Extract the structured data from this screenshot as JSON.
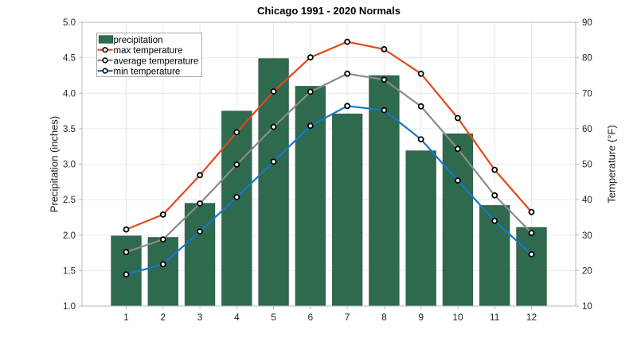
{
  "title": "Chicago 1991 - 2020 Normals",
  "axes": {
    "x": {
      "tick_labels": [
        "1",
        "2",
        "3",
        "4",
        "5",
        "6",
        "7",
        "8",
        "9",
        "10",
        "11",
        "12"
      ]
    },
    "y_left": {
      "label": "Precipitation (inches)",
      "tick_labels": [
        "1.0",
        "1.5",
        "2.0",
        "2.5",
        "3.0",
        "3.5",
        "4.0",
        "4.5",
        "5.0"
      ],
      "min": 1.0,
      "max": 5.0
    },
    "y_right": {
      "label": "Temperature (°F)",
      "tick_labels": [
        "10",
        "20",
        "30",
        "40",
        "50",
        "60",
        "70",
        "80",
        "90"
      ],
      "min": 10,
      "max": 90
    }
  },
  "legend": {
    "position": "top-left",
    "items": [
      {
        "label": "precipitation",
        "marker": "bar-swatch",
        "color": "#2d6a4e"
      },
      {
        "label": "max temperature",
        "marker": "line-circle",
        "color": "#e04a17"
      },
      {
        "label": "average temperature",
        "marker": "line-circle",
        "color": "#8b8b8b"
      },
      {
        "label": "min temperature",
        "marker": "line-circle",
        "color": "#1a76c8"
      }
    ]
  },
  "chart_data": {
    "type": "bar+line",
    "title": "Chicago 1991 - 2020 Normals",
    "categories": [
      1,
      2,
      3,
      4,
      5,
      6,
      7,
      8,
      9,
      10,
      11,
      12
    ],
    "series": [
      {
        "name": "precipitation",
        "kind": "bar",
        "axis": "left",
        "color": "#2d6a4e",
        "values": [
          1.99,
          1.97,
          2.45,
          3.75,
          4.49,
          4.1,
          3.71,
          4.25,
          3.19,
          3.43,
          2.42,
          2.11
        ]
      },
      {
        "name": "max temperature",
        "kind": "line",
        "axis": "right",
        "color": "#e04a17",
        "values": [
          31.6,
          35.8,
          46.9,
          59.0,
          70.5,
          80.1,
          84.5,
          82.4,
          75.5,
          63.0,
          48.4,
          36.5
        ]
      },
      {
        "name": "average temperature",
        "kind": "line",
        "axis": "right",
        "color": "#8b8b8b",
        "values": [
          25.2,
          28.8,
          38.9,
          49.9,
          60.5,
          70.4,
          75.5,
          73.8,
          66.3,
          54.3,
          41.2,
          30.6
        ]
      },
      {
        "name": "min temperature",
        "kind": "line",
        "axis": "right",
        "color": "#1a76c8",
        "values": [
          18.9,
          21.8,
          31.0,
          40.7,
          50.7,
          60.8,
          66.4,
          65.2,
          57.0,
          45.4,
          34.0,
          24.6
        ]
      }
    ],
    "xlabel": "",
    "ylabel_left": "Precipitation (inches)",
    "ylabel_right": "Temperature (°F)",
    "ylim_left": [
      1.0,
      5.0
    ],
    "ylim_right": [
      10,
      90
    ],
    "grid": true,
    "legend_position": "top-left"
  },
  "colors": {
    "bar": "#2d6a4e",
    "max_line": "#e04a17",
    "avg_line": "#8b8b8b",
    "min_line": "#1a76c8",
    "frame": "#b9b9b9",
    "grid": "#e9e9e9",
    "marker_fill": "#ffffff",
    "marker_edge": "#000000",
    "tick_text": "#262626",
    "background": "#ffffff"
  }
}
